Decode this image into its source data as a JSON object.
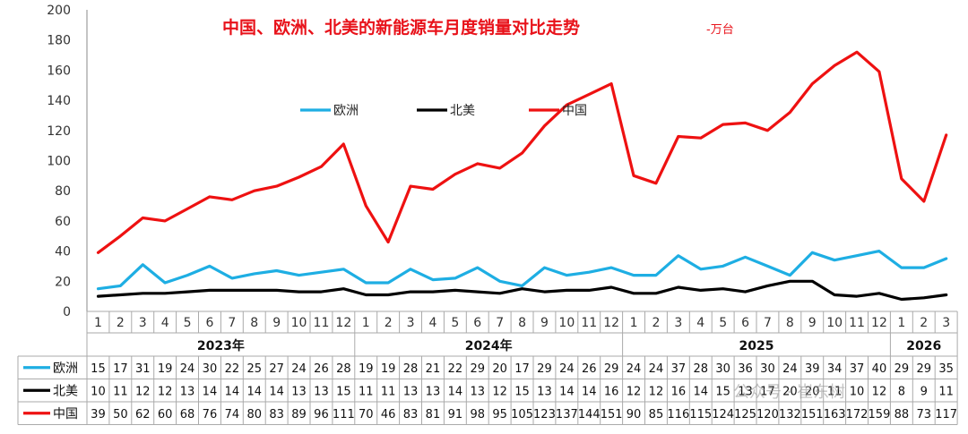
{
  "chart_data": {
    "type": "line",
    "title": "中国、欧洲、北美的新能源车月度销量对比走势",
    "title_unit": "-万台",
    "ylim": [
      0,
      200
    ],
    "yticks": [
      0,
      20,
      40,
      60,
      80,
      100,
      120,
      140,
      160,
      180,
      200
    ],
    "grid": false,
    "legend_position": "top-center",
    "months": [
      "1",
      "2",
      "3",
      "4",
      "5",
      "6",
      "7",
      "8",
      "9",
      "10",
      "11",
      "12",
      "1",
      "2",
      "3",
      "4",
      "5",
      "6",
      "7",
      "8",
      "9",
      "10",
      "11",
      "12",
      "1",
      "2",
      "3",
      "4",
      "5",
      "6",
      "7",
      "8",
      "9",
      "10",
      "11",
      "12",
      "1",
      "2",
      "3"
    ],
    "year_groups": [
      {
        "label": "2023年",
        "count": 12
      },
      {
        "label": "2024年",
        "count": 12
      },
      {
        "label": "2025",
        "count": 12
      },
      {
        "label": "2026",
        "count": 3
      }
    ],
    "series": [
      {
        "name": "欧洲",
        "color": "#1eaee3",
        "values": [
          15,
          17,
          31,
          19,
          24,
          30,
          22,
          25,
          27,
          24,
          26,
          28,
          19,
          19,
          28,
          21,
          22,
          29,
          20,
          17,
          29,
          24,
          26,
          29,
          24,
          24,
          37,
          28,
          30,
          36,
          30,
          24,
          39,
          34,
          37,
          40,
          29,
          29,
          35
        ]
      },
      {
        "name": "北美",
        "color": "#000000",
        "values": [
          10,
          11,
          12,
          12,
          13,
          14,
          14,
          14,
          14,
          13,
          13,
          15,
          11,
          11,
          13,
          13,
          14,
          13,
          12,
          15,
          13,
          14,
          14,
          16,
          12,
          12,
          16,
          14,
          15,
          13,
          17,
          20,
          20,
          11,
          10,
          12,
          8,
          9,
          11
        ]
      },
      {
        "name": "中国",
        "color": "#ee1111",
        "values": [
          39,
          50,
          62,
          60,
          68,
          76,
          74,
          80,
          83,
          89,
          96,
          111,
          70,
          46,
          83,
          81,
          91,
          98,
          95,
          105,
          123,
          137,
          144,
          151,
          90,
          85,
          116,
          115,
          124,
          125,
          120,
          132,
          151,
          163,
          172,
          159,
          88,
          73,
          117
        ]
      }
    ]
  },
  "watermark": "公众号 · 崔东树"
}
